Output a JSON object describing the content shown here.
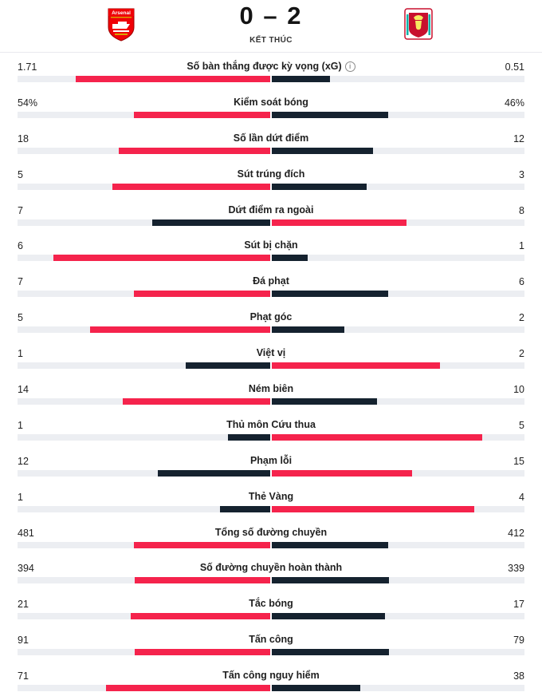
{
  "match": {
    "home_score": "0",
    "away_score": "2",
    "status": "KẾT THÚC",
    "home_logo_text": "Arsenal",
    "home_logo_icon": "arsenal-crest-icon",
    "away_logo_icon": "liverpool-crest-icon"
  },
  "colors": {
    "leader": "#f5234c",
    "trailer": "#15222f",
    "track": "#eceef2"
  },
  "stats": [
    {
      "label": "Số bàn thắng được kỳ vọng (xG)",
      "home": "1.71",
      "away": "0.51",
      "home_n": 1.71,
      "away_n": 0.51,
      "info": true
    },
    {
      "label": "Kiểm soát bóng",
      "home": "54%",
      "away": "46%",
      "home_n": 54,
      "away_n": 46
    },
    {
      "label": "Số lần dứt điểm",
      "home": "18",
      "away": "12",
      "home_n": 18,
      "away_n": 12
    },
    {
      "label": "Sút trúng đích",
      "home": "5",
      "away": "3",
      "home_n": 5,
      "away_n": 3
    },
    {
      "label": "Dứt điểm ra ngoài",
      "home": "7",
      "away": "8",
      "home_n": 7,
      "away_n": 8
    },
    {
      "label": "Sút bị chặn",
      "home": "6",
      "away": "1",
      "home_n": 6,
      "away_n": 1
    },
    {
      "label": "Đá phạt",
      "home": "7",
      "away": "6",
      "home_n": 7,
      "away_n": 6
    },
    {
      "label": "Phạt góc",
      "home": "5",
      "away": "2",
      "home_n": 5,
      "away_n": 2
    },
    {
      "label": "Việt vị",
      "home": "1",
      "away": "2",
      "home_n": 1,
      "away_n": 2
    },
    {
      "label": "Ném biên",
      "home": "14",
      "away": "10",
      "home_n": 14,
      "away_n": 10
    },
    {
      "label": "Thủ môn Cứu thua",
      "home": "1",
      "away": "5",
      "home_n": 1,
      "away_n": 5
    },
    {
      "label": "Phạm lỗi",
      "home": "12",
      "away": "15",
      "home_n": 12,
      "away_n": 15
    },
    {
      "label": "Thẻ Vàng",
      "home": "1",
      "away": "4",
      "home_n": 1,
      "away_n": 4
    },
    {
      "label": "Tổng số đường chuyền",
      "home": "481",
      "away": "412",
      "home_n": 481,
      "away_n": 412
    },
    {
      "label": "Số đường chuyền hoàn thành",
      "home": "394",
      "away": "339",
      "home_n": 394,
      "away_n": 339
    },
    {
      "label": "Tắc bóng",
      "home": "21",
      "away": "17",
      "home_n": 21,
      "away_n": 17
    },
    {
      "label": "Tấn công",
      "home": "91",
      "away": "79",
      "home_n": 91,
      "away_n": 79
    },
    {
      "label": "Tấn công nguy hiểm",
      "home": "71",
      "away": "38",
      "home_n": 71,
      "away_n": 38
    }
  ]
}
